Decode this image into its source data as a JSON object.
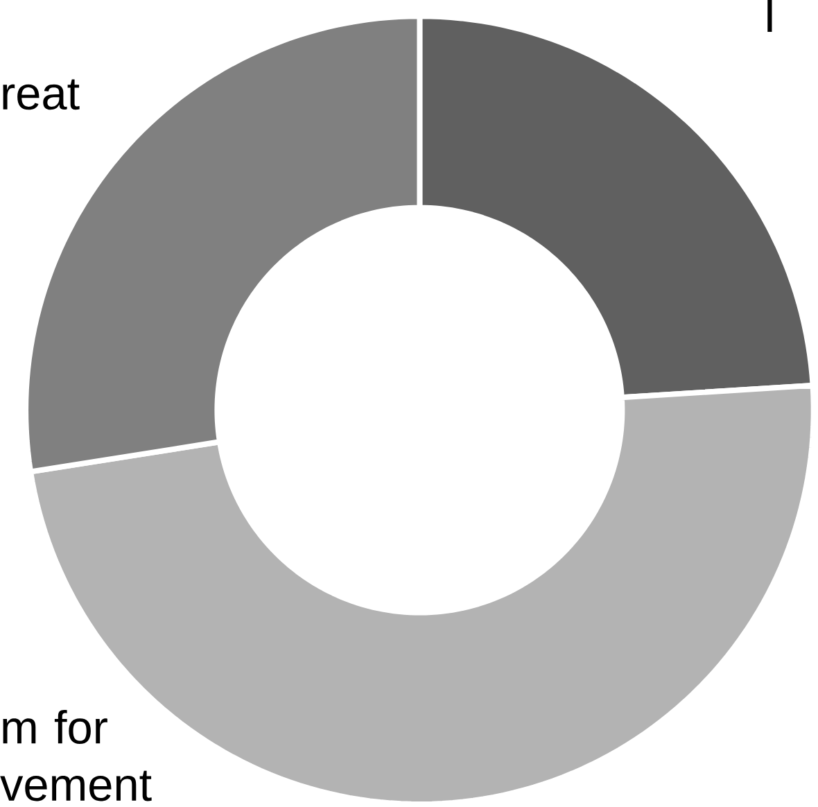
{
  "chart_data": {
    "type": "donut",
    "categories": [
      "I",
      "m for vement",
      "reat"
    ],
    "values": [
      24,
      48.5,
      27.5
    ],
    "colors": [
      "#606060",
      "#b3b3b3",
      "#808080"
    ]
  }
}
